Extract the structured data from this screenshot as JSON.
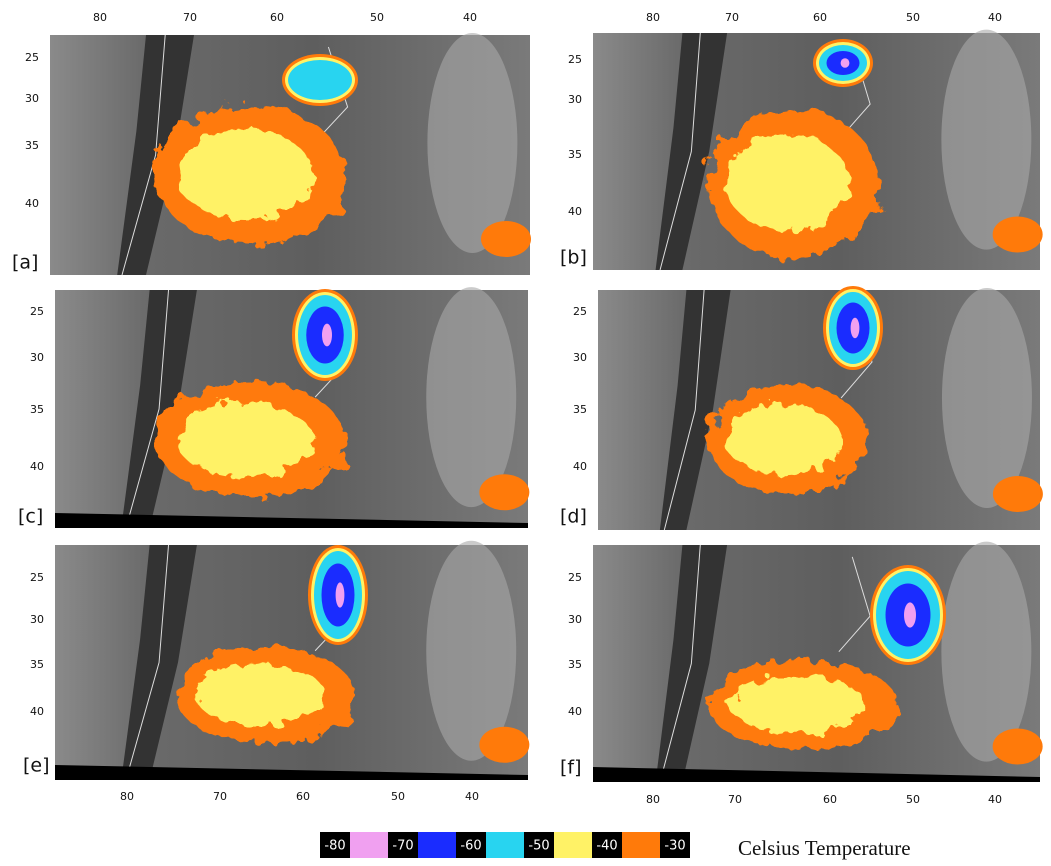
{
  "panels": [
    {
      "label": "[a]",
      "lat_labels": [
        "25",
        "30",
        "35",
        "40"
      ]
    },
    {
      "label": "[b]",
      "lat_labels": [
        "25",
        "30",
        "35",
        "40"
      ]
    },
    {
      "label": "[c]",
      "lat_labels": [
        "25",
        "30",
        "35",
        "40"
      ]
    },
    {
      "label": "[d]",
      "lat_labels": [
        "25",
        "30",
        "35",
        "40"
      ]
    },
    {
      "label": "[e]",
      "lat_labels": [
        "25",
        "30",
        "35",
        "40"
      ]
    },
    {
      "label": "[f]",
      "lat_labels": [
        "25",
        "30",
        "35",
        "40"
      ]
    }
  ],
  "lon_top_left": [
    "80",
    "70",
    "60",
    "50",
    "40"
  ],
  "lon_top_right": [
    "80",
    "70",
    "60",
    "50",
    "40"
  ],
  "lon_bottom_left": [
    "80",
    "70",
    "60",
    "50",
    "40"
  ],
  "lon_bottom_right": [
    "80",
    "70",
    "60",
    "50",
    "40"
  ],
  "legend": {
    "labels": [
      "-80",
      "-70",
      "-60",
      "-50",
      "-40",
      "-30"
    ],
    "title": "Celsius Temperature"
  }
}
